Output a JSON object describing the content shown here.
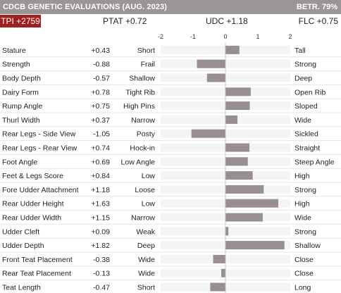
{
  "header": {
    "title": "CDCB GENETIC EVALUATIONS (AUG. 2023)",
    "reliability": "BETR. 79%"
  },
  "summary": {
    "tpi": "TPI +2759",
    "ptat": "PTAT +0.72",
    "udc": "UDC +1.18",
    "flc": "FLC +0.75"
  },
  "colors": {
    "header_bg": "#9a9696",
    "tpi_bg": "#9f1f1f",
    "bar": "#9a8f90",
    "track": "#f4f4f4"
  },
  "chart_data": {
    "type": "bar",
    "orientation": "horizontal",
    "xlim": [
      -2,
      2
    ],
    "ticks": [
      -2,
      -1,
      0,
      1,
      2
    ],
    "tick_labels": [
      "-2",
      "-1",
      "0",
      "1",
      "2"
    ],
    "traits": [
      {
        "name": "Stature",
        "value": 0.43,
        "label": "+0.43",
        "low": "Short",
        "high": "Tall"
      },
      {
        "name": "Strength",
        "value": -0.88,
        "label": "-0.88",
        "low": "Frail",
        "high": "Strong"
      },
      {
        "name": "Body Depth",
        "value": -0.57,
        "label": "-0.57",
        "low": "Shallow",
        "high": "Deep"
      },
      {
        "name": "Dairy Form",
        "value": 0.78,
        "label": "+0.78",
        "low": "Tight Rib",
        "high": "Open Rib"
      },
      {
        "name": "Rump Angle",
        "value": 0.75,
        "label": "+0.75",
        "low": "High Pins",
        "high": "Sloped"
      },
      {
        "name": "Thurl Width",
        "value": 0.37,
        "label": "+0.37",
        "low": "Narrow",
        "high": "Wide"
      },
      {
        "name": "Rear Legs - Side View",
        "value": -1.05,
        "label": "-1.05",
        "low": "Posty",
        "high": "Sickled"
      },
      {
        "name": "Rear Legs - Rear View",
        "value": 0.74,
        "label": "+0.74",
        "low": "Hock-in",
        "high": "Straight"
      },
      {
        "name": "Foot Angle",
        "value": 0.69,
        "label": "+0.69",
        "low": "Low Angle",
        "high": "Steep Angle"
      },
      {
        "name": "Feet & Legs Score",
        "value": 0.84,
        "label": "+0.84",
        "low": "Low",
        "high": "High"
      },
      {
        "name": "Fore Udder Attachment",
        "value": 1.18,
        "label": "+1.18",
        "low": "Loose",
        "high": "Strong"
      },
      {
        "name": "Rear Udder Height",
        "value": 1.63,
        "label": "+1.63",
        "low": "Low",
        "high": "High"
      },
      {
        "name": "Rear Udder Width",
        "value": 1.15,
        "label": "+1.15",
        "low": "Narrow",
        "high": "Wide"
      },
      {
        "name": "Udder Cleft",
        "value": 0.09,
        "label": "+0.09",
        "low": "Weak",
        "high": "Strong"
      },
      {
        "name": "Udder Depth",
        "value": 1.82,
        "label": "+1.82",
        "low": "Deep",
        "high": "Shallow"
      },
      {
        "name": "Front Teat Placement",
        "value": -0.38,
        "label": "-0.38",
        "low": "Wide",
        "high": "Close"
      },
      {
        "name": "Rear Teat Placement",
        "value": -0.13,
        "label": "-0.13",
        "low": "Wide",
        "high": "Close"
      },
      {
        "name": "Teat Length",
        "value": -0.47,
        "label": "-0.47",
        "low": "Short",
        "high": "Long"
      }
    ]
  }
}
